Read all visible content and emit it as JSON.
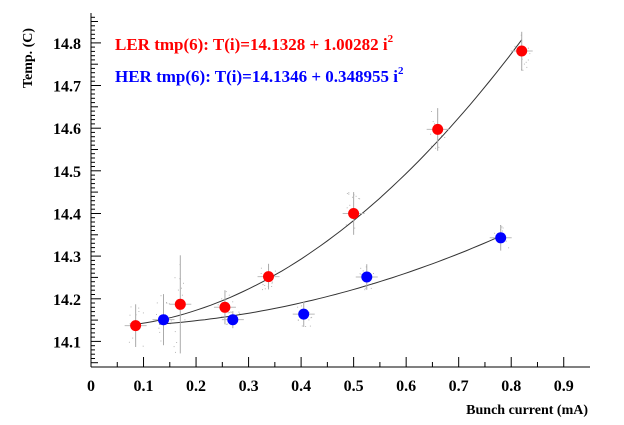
{
  "chart_data": {
    "type": "scatter",
    "title": "",
    "xlabel": "Bunch current (mA)",
    "ylabel": "Temp. (C)",
    "xlim": [
      0,
      0.95
    ],
    "ylim": [
      14.04,
      14.87
    ],
    "x_ticks": [
      0,
      0.1,
      0.2,
      0.3,
      0.4,
      0.5,
      0.6,
      0.7,
      0.8,
      0.9
    ],
    "x_tick_labels": [
      "0",
      "0.1",
      "0.2",
      "0.3",
      "0.4",
      "0.5",
      "0.6",
      "0.7",
      "0.8",
      "0.9"
    ],
    "y_ticks": [
      14.1,
      14.2,
      14.3,
      14.4,
      14.5,
      14.6,
      14.7,
      14.8
    ],
    "y_tick_labels": [
      "14.1",
      "14.2",
      "14.3",
      "14.4",
      "14.5",
      "14.6",
      "14.7",
      "14.8"
    ],
    "grid": false,
    "legend_position": "top-left",
    "series": [
      {
        "name": "LER tmp(6)",
        "color": "#ff0000",
        "fit_label": "LER tmp(6): T(i)=14.1328 + 1.00282 i",
        "fit_exponent": "2",
        "fit": {
          "a": 14.1328,
          "b": 1.00282,
          "power": 2
        },
        "fit_range": [
          0.08,
          0.82
        ],
        "x": [
          0.085,
          0.17,
          0.255,
          0.338,
          0.5,
          0.66,
          0.82
        ],
        "y": [
          14.137,
          14.187,
          14.18,
          14.252,
          14.4,
          14.597,
          14.781
        ],
        "yerr": [
          0.05,
          0.115,
          0.04,
          0.03,
          0.05,
          0.05,
          0.045
        ]
      },
      {
        "name": "HER tmp(6)",
        "color": "#0000ff",
        "fit_label": "HER tmp(6): T(i)=14.1346 + 0.348955 i",
        "fit_exponent": "2",
        "fit": {
          "a": 14.1346,
          "b": 0.348955,
          "power": 2
        },
        "fit_range": [
          0.13,
          0.78
        ],
        "x": [
          0.138,
          0.27,
          0.405,
          0.525,
          0.78
        ],
        "y": [
          14.151,
          14.151,
          14.164,
          14.251,
          14.343
        ],
        "yerr": [
          0.06,
          0.02,
          0.03,
          0.03,
          0.03
        ]
      }
    ]
  }
}
